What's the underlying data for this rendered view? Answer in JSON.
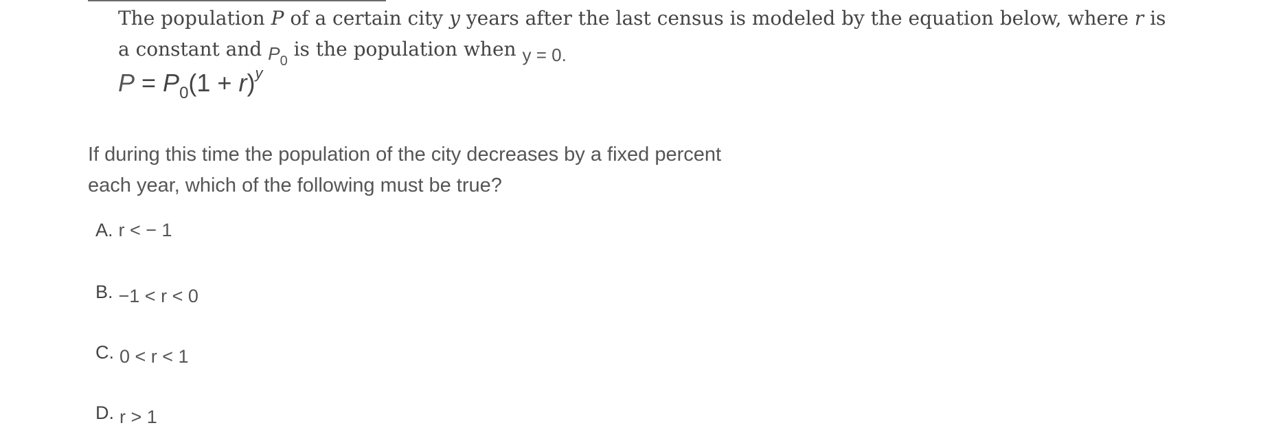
{
  "passage": {
    "line1_text_a": "The population ",
    "line1_var_p": "P",
    "line1_text_b": " of a certain city ",
    "line1_var_y": "y",
    "line1_text_c": " years after the last census is modeled by the equation below, where ",
    "line1_var_r": "r",
    "line1_text_d": " is",
    "line2_text_a": "a constant and ",
    "line2_p0_base": "P",
    "line2_p0_sub": "0",
    "line2_text_b": " is the population when ",
    "line2_condition": "y = 0",
    "line2_period": "."
  },
  "equation": {
    "lhs": "P",
    "equals": " = ",
    "p_base": "P",
    "p_sub": "0",
    "factor": "(1 + ",
    "r": "r",
    "close": ")",
    "exponent": "y"
  },
  "question": {
    "line1": "If during this time the population of the city decreases by a fixed percent",
    "line2": "each year, which of the following must be true?"
  },
  "choices": [
    {
      "letter": "A.",
      "expression": "r < − 1"
    },
    {
      "letter": "B.",
      "expression": "−1 < r < 0"
    },
    {
      "letter": "C.",
      "expression": "0 < r < 1"
    },
    {
      "letter": "D.",
      "expression": "r > 1"
    }
  ]
}
